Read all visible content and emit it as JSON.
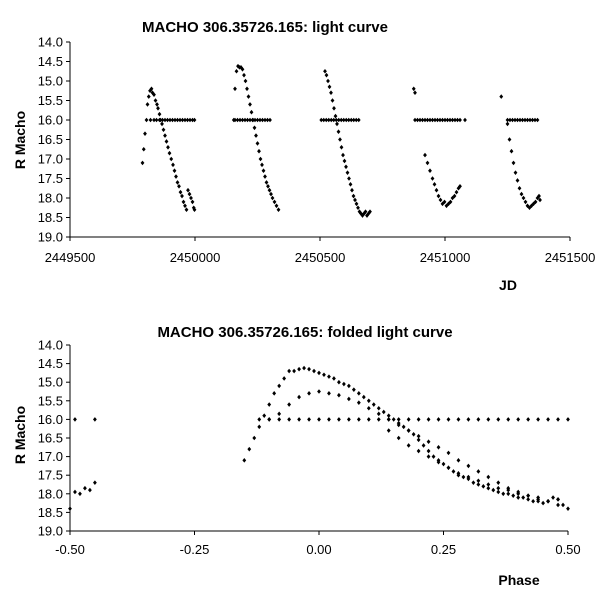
{
  "chart_data": [
    {
      "type": "scatter",
      "title": "MACHO 306.35726.165: light curve",
      "xlabel": "JD",
      "ylabel": "R Macho",
      "xlim": [
        2449500,
        2451500
      ],
      "ylim": [
        14.0,
        19.0
      ],
      "y_inverted": true,
      "xticks": [
        2449500,
        2450000,
        2450500,
        2451000,
        2451500
      ],
      "xtick_labels": [
        "2449500",
        "2450000",
        "2450500",
        "2451000",
        "2451500"
      ],
      "yticks": [
        14.0,
        14.5,
        15.0,
        15.5,
        16.0,
        16.5,
        17.0,
        17.5,
        18.0,
        18.5,
        19.0
      ],
      "ytick_labels": [
        "14.0",
        "14.5",
        "15.0",
        "15.5",
        "16.0",
        "16.5",
        "17.0",
        "17.5",
        "18.0",
        "18.5",
        "19.0"
      ],
      "grid": false,
      "marker_color": "#000000",
      "series": [
        {
          "x": [
            2449790,
            2449795,
            2449800,
            2449806,
            2449810,
            2449815,
            2449820,
            2449826,
            2449830,
            2449836,
            2449842,
            2449848,
            2449852,
            2449858,
            2449862,
            2449868,
            2449874,
            2449880,
            2449886,
            2449892,
            2449898,
            2449905,
            2449912,
            2449918,
            2449924,
            2449930,
            2449936,
            2449942,
            2449948,
            2449954,
            2449960,
            2449966,
            2449972,
            2449978,
            2449984,
            2449990,
            2449995,
            2449998,
            2449822,
            2449836,
            2449846,
            2449858,
            2449870,
            2449880,
            2449890,
            2449900,
            2449910,
            2449920,
            2449930,
            2449940,
            2449950,
            2449960,
            2449970,
            2449980,
            2449990,
            2449998
          ],
          "y": [
            17.1,
            16.75,
            16.35,
            16.0,
            15.6,
            15.4,
            15.25,
            15.2,
            15.3,
            15.35,
            15.5,
            15.6,
            15.7,
            15.85,
            16.0,
            16.1,
            16.25,
            16.4,
            16.55,
            16.7,
            16.85,
            17.0,
            17.15,
            17.3,
            17.45,
            17.6,
            17.7,
            17.85,
            17.95,
            18.1,
            18.2,
            18.3,
            17.8,
            17.9,
            18.0,
            18.1,
            18.25,
            18.3,
            16.0,
            16.0,
            16.0,
            16.0,
            16.0,
            16.0,
            16.0,
            16.0,
            16.0,
            16.0,
            16.0,
            16.0,
            16.0,
            16.0,
            16.0,
            16.0,
            16.0,
            16.0
          ]
        },
        {
          "x": [
            2450155,
            2450160,
            2450166,
            2450172,
            2450178,
            2450184,
            2450190,
            2450196,
            2450202,
            2450208,
            2450214,
            2450220,
            2450226,
            2450232,
            2450238,
            2450244,
            2450250,
            2450256,
            2450262,
            2450268,
            2450274,
            2450280,
            2450286,
            2450292,
            2450298,
            2450304,
            2450310,
            2450318,
            2450326,
            2450334,
            2450160,
            2450170,
            2450180,
            2450190,
            2450200,
            2450210,
            2450220,
            2450230,
            2450240,
            2450250,
            2450260,
            2450270,
            2450280,
            2450290,
            2450300
          ],
          "y": [
            16.0,
            15.2,
            14.75,
            14.62,
            14.65,
            14.65,
            14.7,
            14.85,
            15.0,
            15.2,
            15.4,
            15.6,
            15.8,
            16.0,
            16.2,
            16.4,
            16.6,
            16.8,
            17.0,
            17.15,
            17.3,
            17.45,
            17.6,
            17.7,
            17.8,
            17.9,
            18.0,
            18.1,
            18.2,
            18.3,
            16.0,
            16.0,
            16.0,
            16.0,
            16.0,
            16.0,
            16.0,
            16.0,
            16.0,
            16.0,
            16.0,
            16.0,
            16.0,
            16.0,
            16.0
          ]
        },
        {
          "x": [
            2450520,
            2450526,
            2450532,
            2450538,
            2450544,
            2450550,
            2450556,
            2450562,
            2450568,
            2450574,
            2450580,
            2450586,
            2450592,
            2450598,
            2450604,
            2450610,
            2450616,
            2450622,
            2450628,
            2450634,
            2450640,
            2450646,
            2450652,
            2450658,
            2450664,
            2450670,
            2450676,
            2450682,
            2450688,
            2450694,
            2450700,
            2450505,
            2450515,
            2450525,
            2450535,
            2450545,
            2450555,
            2450565,
            2450575,
            2450585,
            2450595,
            2450605,
            2450615,
            2450625,
            2450635,
            2450645,
            2450655
          ],
          "y": [
            14.75,
            14.85,
            15.0,
            15.15,
            15.3,
            15.5,
            15.7,
            15.9,
            16.1,
            16.3,
            16.5,
            16.7,
            16.9,
            17.05,
            17.2,
            17.35,
            17.5,
            17.65,
            17.8,
            17.95,
            18.05,
            18.15,
            18.25,
            18.35,
            18.4,
            18.45,
            18.4,
            18.35,
            18.45,
            18.4,
            18.35,
            16.0,
            16.0,
            16.0,
            16.0,
            16.0,
            16.0,
            16.0,
            16.0,
            16.0,
            16.0,
            16.0,
            16.0,
            16.0,
            16.0,
            16.0,
            16.0
          ]
        },
        {
          "x": [
            2450875,
            2450880,
            2450920,
            2450930,
            2450940,
            2450950,
            2450958,
            2450966,
            2450974,
            2450982,
            2450990,
            2450998,
            2451006,
            2451014,
            2451022,
            2451030,
            2451038,
            2451046,
            2451054,
            2451060,
            2450880,
            2450890,
            2450900,
            2450910,
            2450920,
            2450930,
            2450940,
            2450950,
            2450960,
            2450970,
            2450980,
            2450990,
            2451000,
            2451010,
            2451020,
            2451030,
            2451040,
            2451050,
            2451060,
            2451080
          ],
          "y": [
            15.2,
            15.3,
            16.9,
            17.1,
            17.3,
            17.5,
            17.65,
            17.8,
            17.95,
            18.05,
            18.15,
            18.1,
            18.2,
            18.15,
            18.1,
            18.0,
            17.95,
            17.85,
            17.75,
            17.7,
            16.0,
            16.0,
            16.0,
            16.0,
            16.0,
            16.0,
            16.0,
            16.0,
            16.0,
            16.0,
            16.0,
            16.0,
            16.0,
            16.0,
            16.0,
            16.0,
            16.0,
            16.0,
            16.0,
            16.0
          ]
        },
        {
          "x": [
            2451225,
            2451250,
            2451258,
            2451266,
            2451274,
            2451282,
            2451290,
            2451298,
            2451306,
            2451314,
            2451322,
            2451330,
            2451338,
            2451346,
            2451354,
            2451362,
            2451370,
            2451376,
            2451380,
            2451250,
            2451260,
            2451270,
            2451280,
            2451290,
            2451300,
            2451310,
            2451320,
            2451330,
            2451340,
            2451350,
            2451360,
            2451370
          ],
          "y": [
            15.4,
            16.1,
            16.5,
            16.8,
            17.1,
            17.35,
            17.55,
            17.75,
            17.9,
            18.0,
            18.1,
            18.2,
            18.25,
            18.2,
            18.15,
            18.1,
            18.0,
            17.95,
            18.05,
            16.0,
            16.0,
            16.0,
            16.0,
            16.0,
            16.0,
            16.0,
            16.0,
            16.0,
            16.0,
            16.0,
            16.0,
            16.0
          ]
        }
      ]
    },
    {
      "type": "scatter",
      "title": "MACHO 306.35726.165: folded light curve",
      "xlabel": "Phase",
      "ylabel": "R Macho",
      "xlim": [
        -0.5,
        0.5
      ],
      "ylim": [
        14.0,
        19.0
      ],
      "y_inverted": true,
      "xticks": [
        -0.5,
        -0.25,
        0.0,
        0.25,
        0.5
      ],
      "xtick_labels": [
        "-0.50",
        "-0.25",
        "0.00",
        "0.25",
        "0.50"
      ],
      "yticks": [
        14.0,
        14.5,
        15.0,
        15.5,
        16.0,
        16.5,
        17.0,
        17.5,
        18.0,
        18.5,
        19.0
      ],
      "ytick_labels": [
        "14.0",
        "14.5",
        "15.0",
        "15.5",
        "16.0",
        "16.5",
        "17.0",
        "17.5",
        "18.0",
        "18.5",
        "19.0"
      ],
      "grid": false,
      "marker_color": "#000000",
      "series": [
        {
          "x": [
            -0.5,
            -0.49,
            -0.48,
            -0.47,
            -0.46,
            -0.45,
            -0.49,
            -0.45,
            -0.15,
            -0.14,
            -0.13,
            -0.12,
            -0.11,
            -0.1,
            -0.09,
            -0.08,
            -0.07,
            -0.06,
            -0.05,
            -0.04,
            -0.03,
            -0.02,
            -0.01,
            0.0,
            0.01,
            0.02,
            0.03,
            0.04,
            0.05,
            0.06,
            0.07,
            0.08,
            0.09,
            0.1,
            0.11,
            0.12,
            0.13,
            0.14,
            0.15,
            0.16,
            0.17,
            0.18,
            0.19,
            0.2,
            0.21,
            0.22,
            0.23,
            0.24,
            0.25,
            0.26,
            0.27,
            0.28,
            0.29,
            0.3,
            0.31,
            0.32,
            0.33,
            0.34,
            0.35,
            0.36,
            0.37,
            0.38,
            0.39,
            0.4,
            0.41,
            0.42,
            0.43,
            0.44,
            0.45,
            0.46,
            0.47,
            0.48,
            0.49,
            0.5
          ],
          "y": [
            18.4,
            17.95,
            18.0,
            17.85,
            17.9,
            17.7,
            16.0,
            16.0,
            17.1,
            16.8,
            16.5,
            16.2,
            15.9,
            15.6,
            15.3,
            15.1,
            14.9,
            14.7,
            14.7,
            14.65,
            14.62,
            14.65,
            14.7,
            14.75,
            14.8,
            14.85,
            14.9,
            15.0,
            15.05,
            15.1,
            15.2,
            15.3,
            15.4,
            15.5,
            15.6,
            15.7,
            15.8,
            15.9,
            16.0,
            16.1,
            16.2,
            16.3,
            16.4,
            16.55,
            16.7,
            16.85,
            17.0,
            17.1,
            17.2,
            17.3,
            17.4,
            17.5,
            17.55,
            17.6,
            17.7,
            17.75,
            17.8,
            17.85,
            17.9,
            17.95,
            18.0,
            18.0,
            18.05,
            18.1,
            18.1,
            18.15,
            18.2,
            18.2,
            18.25,
            18.2,
            18.1,
            18.15,
            18.3,
            18.4
          ]
        },
        {
          "x": [
            -0.1,
            -0.08,
            -0.06,
            -0.04,
            -0.02,
            0.0,
            0.02,
            0.04,
            0.06,
            0.08,
            0.1,
            0.12,
            0.14,
            0.16,
            0.18,
            0.2,
            0.22,
            0.24,
            0.26,
            0.28,
            0.3,
            0.32,
            0.34,
            0.36,
            0.38,
            0.4,
            0.42,
            0.44,
            0.46,
            0.48
          ],
          "y": [
            16.0,
            15.85,
            15.6,
            15.4,
            15.3,
            15.25,
            15.3,
            15.35,
            15.45,
            15.55,
            15.7,
            15.85,
            16.0,
            16.15,
            16.3,
            16.45,
            16.6,
            16.75,
            16.9,
            17.1,
            17.25,
            17.4,
            17.55,
            17.7,
            17.85,
            17.95,
            18.05,
            18.15,
            18.2,
            18.3
          ]
        },
        {
          "x": [
            -0.12,
            -0.1,
            -0.08,
            -0.06,
            -0.04,
            -0.02,
            0.0,
            0.02,
            0.04,
            0.06,
            0.08,
            0.1,
            0.12,
            0.14,
            0.16,
            0.18,
            0.2,
            0.22,
            0.24,
            0.26,
            0.28,
            0.3,
            0.32,
            0.34,
            0.36,
            0.38,
            0.4,
            0.42,
            0.44,
            0.46,
            0.48,
            0.5
          ],
          "y": [
            16.0,
            16.0,
            16.0,
            16.0,
            16.0,
            16.0,
            16.0,
            16.0,
            16.0,
            16.0,
            16.0,
            16.0,
            16.0,
            16.0,
            16.0,
            16.0,
            16.0,
            16.0,
            16.0,
            16.0,
            16.0,
            16.0,
            16.0,
            16.0,
            16.0,
            16.0,
            16.0,
            16.0,
            16.0,
            16.0,
            16.0,
            16.0
          ]
        },
        {
          "x": [
            0.14,
            0.16,
            0.18,
            0.2,
            0.22,
            0.24,
            0.26,
            0.28,
            0.3,
            0.32,
            0.34,
            0.36,
            0.38,
            0.4,
            0.42,
            0.44,
            0.46,
            0.48
          ],
          "y": [
            16.3,
            16.5,
            16.7,
            16.85,
            17.0,
            17.15,
            17.3,
            17.45,
            17.55,
            17.65,
            17.75,
            17.85,
            17.9,
            18.0,
            18.05,
            18.1,
            18.2,
            18.15
          ]
        }
      ]
    }
  ]
}
